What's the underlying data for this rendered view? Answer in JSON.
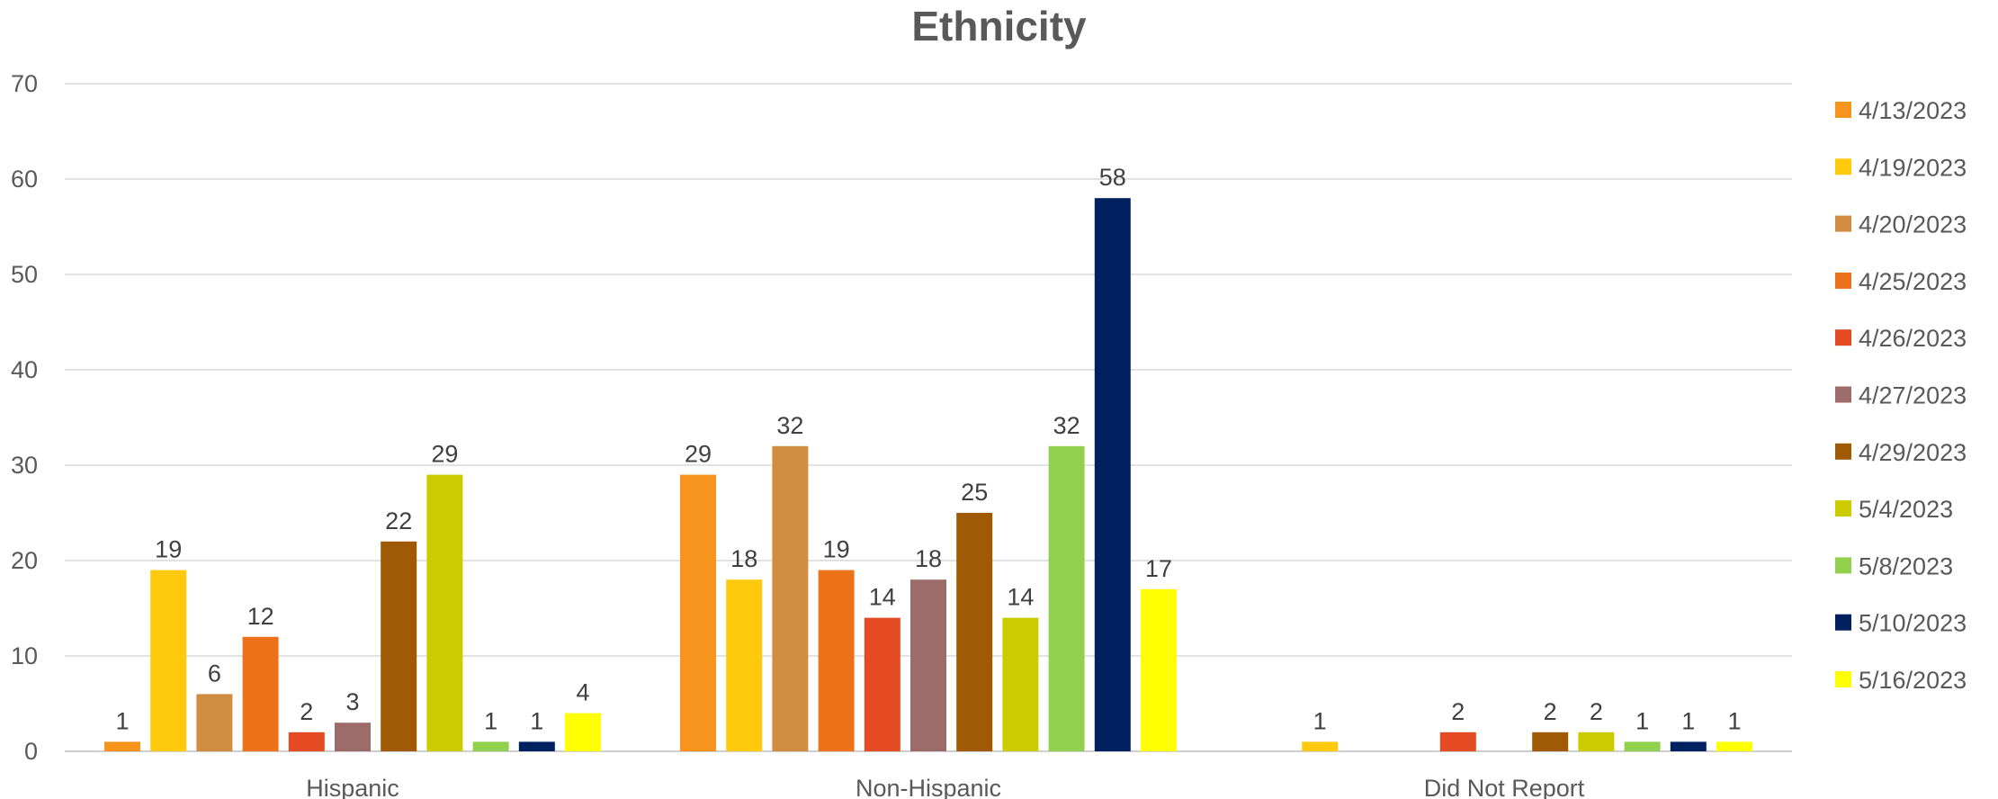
{
  "chart_data": {
    "type": "bar",
    "title": "Ethnicity",
    "xlabel": "",
    "ylabel": "",
    "categories": [
      "Hispanic",
      "Non-Hispanic",
      "Did Not Report"
    ],
    "ylim": [
      0,
      70
    ],
    "yticks": [
      0,
      10,
      20,
      30,
      40,
      50,
      60,
      70
    ],
    "grid": true,
    "legend_position": "right",
    "series": [
      {
        "name": "4/13/2023",
        "color": "#F7941D",
        "values": [
          1,
          29,
          0
        ]
      },
      {
        "name": "4/19/2023",
        "color": "#FFC90E",
        "values": [
          19,
          18,
          1
        ]
      },
      {
        "name": "4/20/2023",
        "color": "#D08C40",
        "values": [
          6,
          32,
          0
        ]
      },
      {
        "name": "4/25/2023",
        "color": "#EC7118",
        "values": [
          12,
          19,
          0
        ]
      },
      {
        "name": "4/26/2023",
        "color": "#E54B23",
        "values": [
          2,
          14,
          2
        ]
      },
      {
        "name": "4/27/2023",
        "color": "#9E6B6B",
        "values": [
          3,
          18,
          0
        ]
      },
      {
        "name": "4/29/2023",
        "color": "#A05A03",
        "values": [
          22,
          25,
          2
        ]
      },
      {
        "name": "5/4/2023",
        "color": "#CBCB00",
        "values": [
          29,
          14,
          2
        ]
      },
      {
        "name": "5/8/2023",
        "color": "#92D050",
        "values": [
          1,
          32,
          1
        ]
      },
      {
        "name": "5/10/2023",
        "color": "#002060",
        "values": [
          1,
          58,
          1
        ]
      },
      {
        "name": "5/16/2023",
        "color": "#FFFF00",
        "values": [
          4,
          17,
          1
        ]
      }
    ]
  }
}
